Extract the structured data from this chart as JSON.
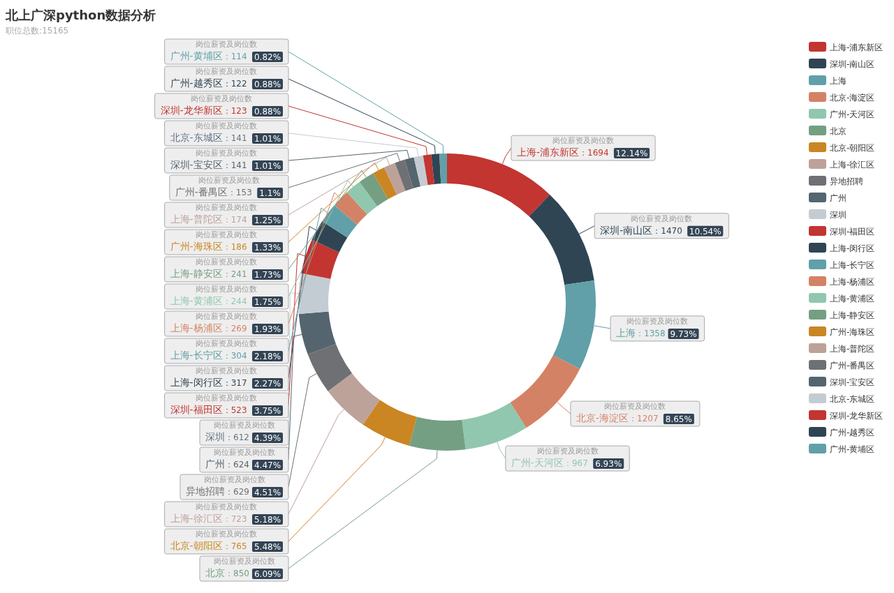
{
  "chart_data": {
    "type": "donut",
    "title": "北上广深python数据分析",
    "subtitle": "职位总数:15165",
    "legend": "right",
    "categories": [
      "上海-浦东新区",
      "深圳-南山区",
      "上海",
      "北京-海淀区",
      "广州-天河区",
      "北京",
      "北京-朝阳区",
      "上海-徐汇区",
      "异地招聘",
      "广州",
      "深圳",
      "深圳-福田区",
      "上海-闵行区",
      "上海-长宁区",
      "上海-杨浦区",
      "上海-黄浦区",
      "上海-静安区",
      "广州-海珠区",
      "上海-普陀区",
      "广州-番禺区",
      "深圳-宝安区",
      "北京-东城区",
      "深圳-龙华新区",
      "广州-越秀区",
      "广州-黄埔区"
    ],
    "series": [
      {
        "name": "岗位薪资及岗位数",
        "values": [
          1694,
          1470,
          1358,
          1207,
          967,
          850,
          765,
          723,
          629,
          624,
          612,
          523,
          317,
          304,
          269,
          244,
          241,
          186,
          174,
          153,
          141,
          141,
          123,
          122,
          114
        ],
        "value_labels": [
          "：1694 12.14%",
          "：1470 10.54%",
          "：1358 9.73%",
          "：1207 8.65%",
          "：967 6.93%",
          "：850 6.09%",
          "：765 5.48%",
          "：723 5.18%",
          "：629 4.51%",
          "：624 4.47%",
          "：612 4.39%",
          "：523 3.75%",
          "：317 2.27%",
          "：304 2.18%",
          "：269 1.93%",
          "：244 1.75%",
          "：241 1.73%",
          "：186 1.33%",
          "：174 1.25%",
          "：153 1.1%",
          "：141 1.01%",
          "：141 1.01%",
          "：123 0.88%",
          "：122 0.88%",
          "：114 0.82%"
        ]
      }
    ],
    "colors": [
      "#c23531",
      "#2f4554",
      "#61a0a8",
      "#d48265",
      "#91c7ae",
      "#749f83",
      "#ca8622",
      "#bda29a",
      "#6e7074",
      "#546570",
      "#c4ccd3",
      "#c23531",
      "#2f4554",
      "#61a0a8",
      "#d48265",
      "#91c7ae",
      "#749f83",
      "#ca8622",
      "#bda29a",
      "#6e7074",
      "#546570",
      "#c4ccd3",
      "#c23531",
      "#2f4554",
      "#61a0a8"
    ],
    "data_labels": true
  }
}
